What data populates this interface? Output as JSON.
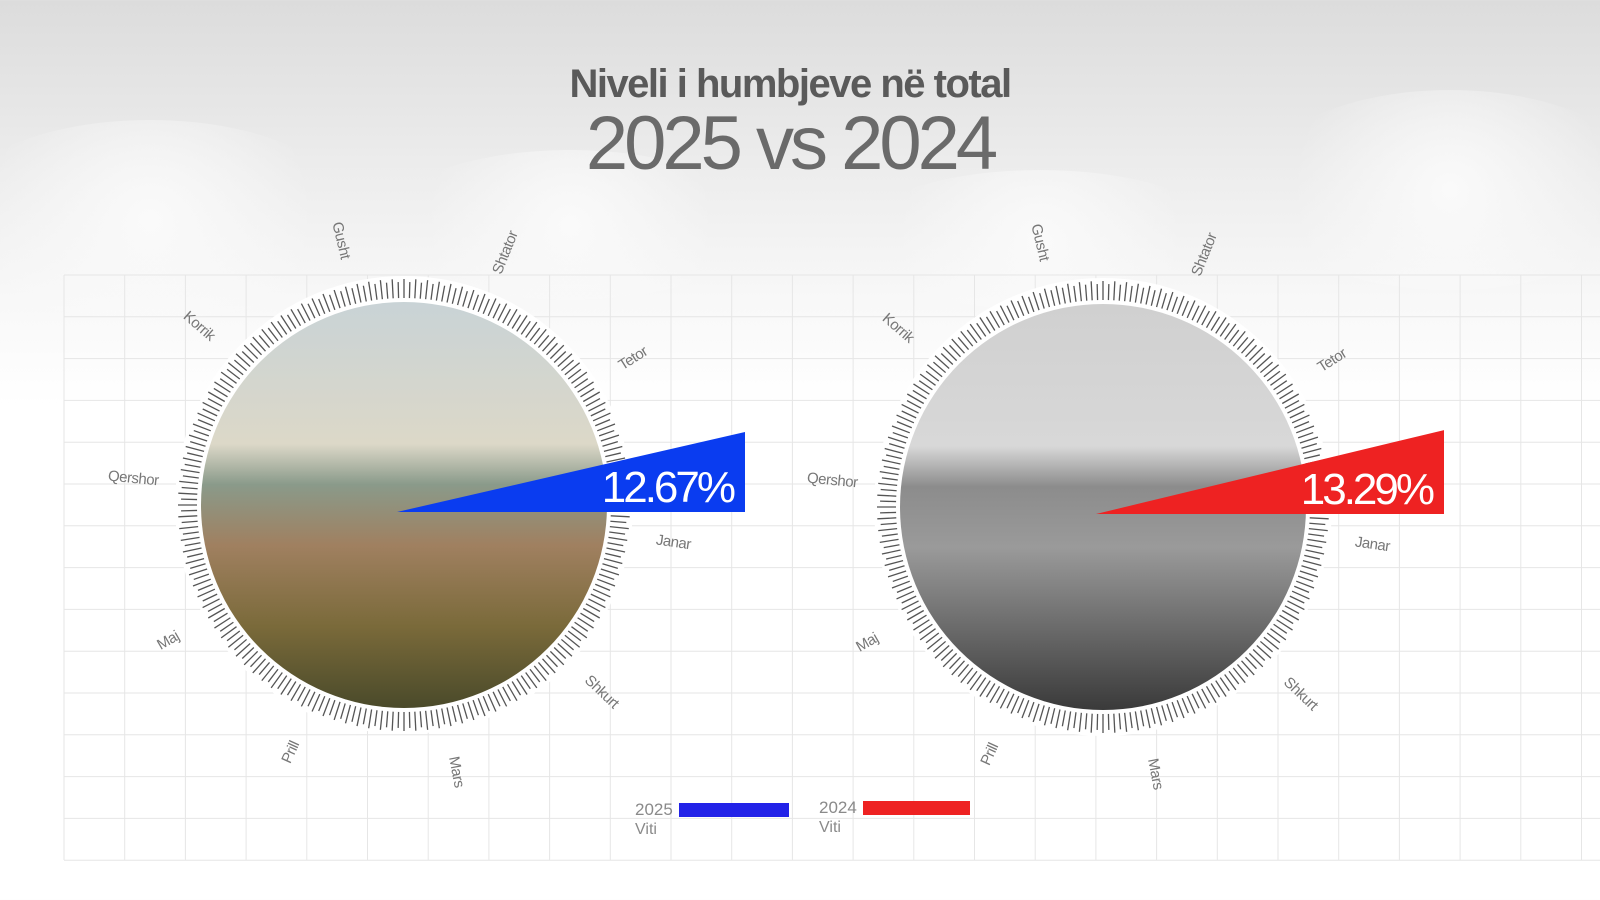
{
  "title": {
    "line1": "Niveli i humbjeve në total",
    "line2": "2025 vs 2024"
  },
  "chart_data": {
    "type": "radial-gauge",
    "months": [
      "Janar",
      "Shkurt",
      "Mars",
      "Prill",
      "Maj",
      "Qershor",
      "Korrik",
      "Gusht",
      "Shtator",
      "Tetor"
    ],
    "series": [
      {
        "name": "2025",
        "value": 12.67,
        "label": "12.67%",
        "color": "#0a3cf0",
        "photo": "color"
      },
      {
        "name": "2024",
        "value": 13.29,
        "label": "13.29%",
        "color": "#ee2222",
        "photo": "grayscale"
      }
    ]
  },
  "legend": [
    {
      "year": "2025",
      "sub": "Viti",
      "color": "#2222e8"
    },
    {
      "year": "2024",
      "sub": "Viti",
      "color": "#ee2222"
    }
  ]
}
